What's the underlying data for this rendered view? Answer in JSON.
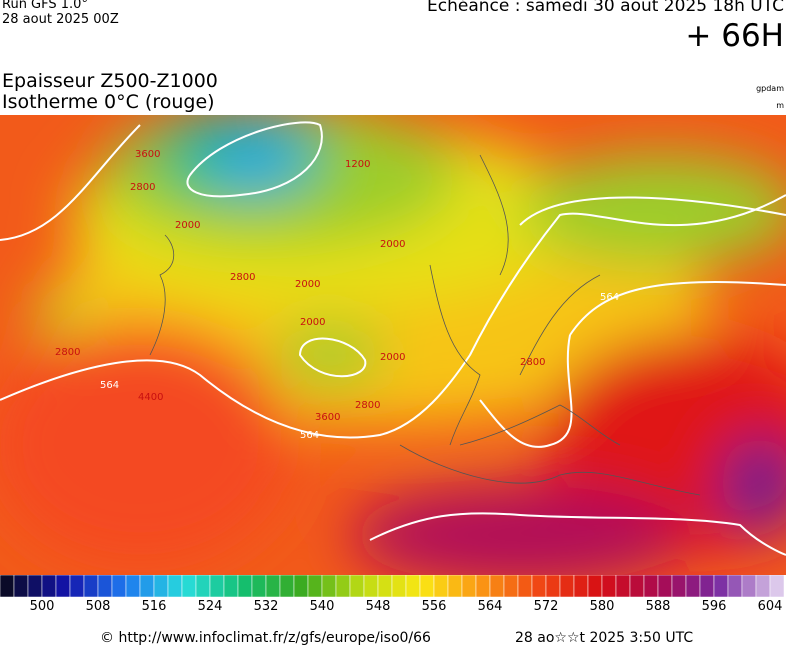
{
  "header": {
    "run": "Run GFS 1.0°",
    "run_date": "28 aout 2025 00Z",
    "echeance": "Echéance : samedi 30 aout 2025 18h UTC",
    "lead": "+ 66H",
    "title": "Epaisseur Z500-Z1000",
    "subtitle": "Isotherme 0°C (rouge)",
    "unit_top": "gpdam",
    "unit_bottom": "m"
  },
  "map": {
    "contour_labels": [
      "3600",
      "2800",
      "1200",
      "2000",
      "2000",
      "2800",
      "2000",
      "2000",
      "2800",
      "564",
      "564",
      "4400",
      "3600",
      "2800",
      "2000",
      "2800",
      "564"
    ]
  },
  "colorbar": {
    "labels": [
      500,
      508,
      516,
      524,
      532,
      540,
      548,
      556,
      564,
      572,
      580,
      588,
      596,
      604
    ]
  },
  "footer": {
    "url": "© http://www.infoclimat.fr/z/gfs/europe/iso0/66",
    "timestamp": "28 ao☆☆t 2025  3:50 UTC"
  }
}
